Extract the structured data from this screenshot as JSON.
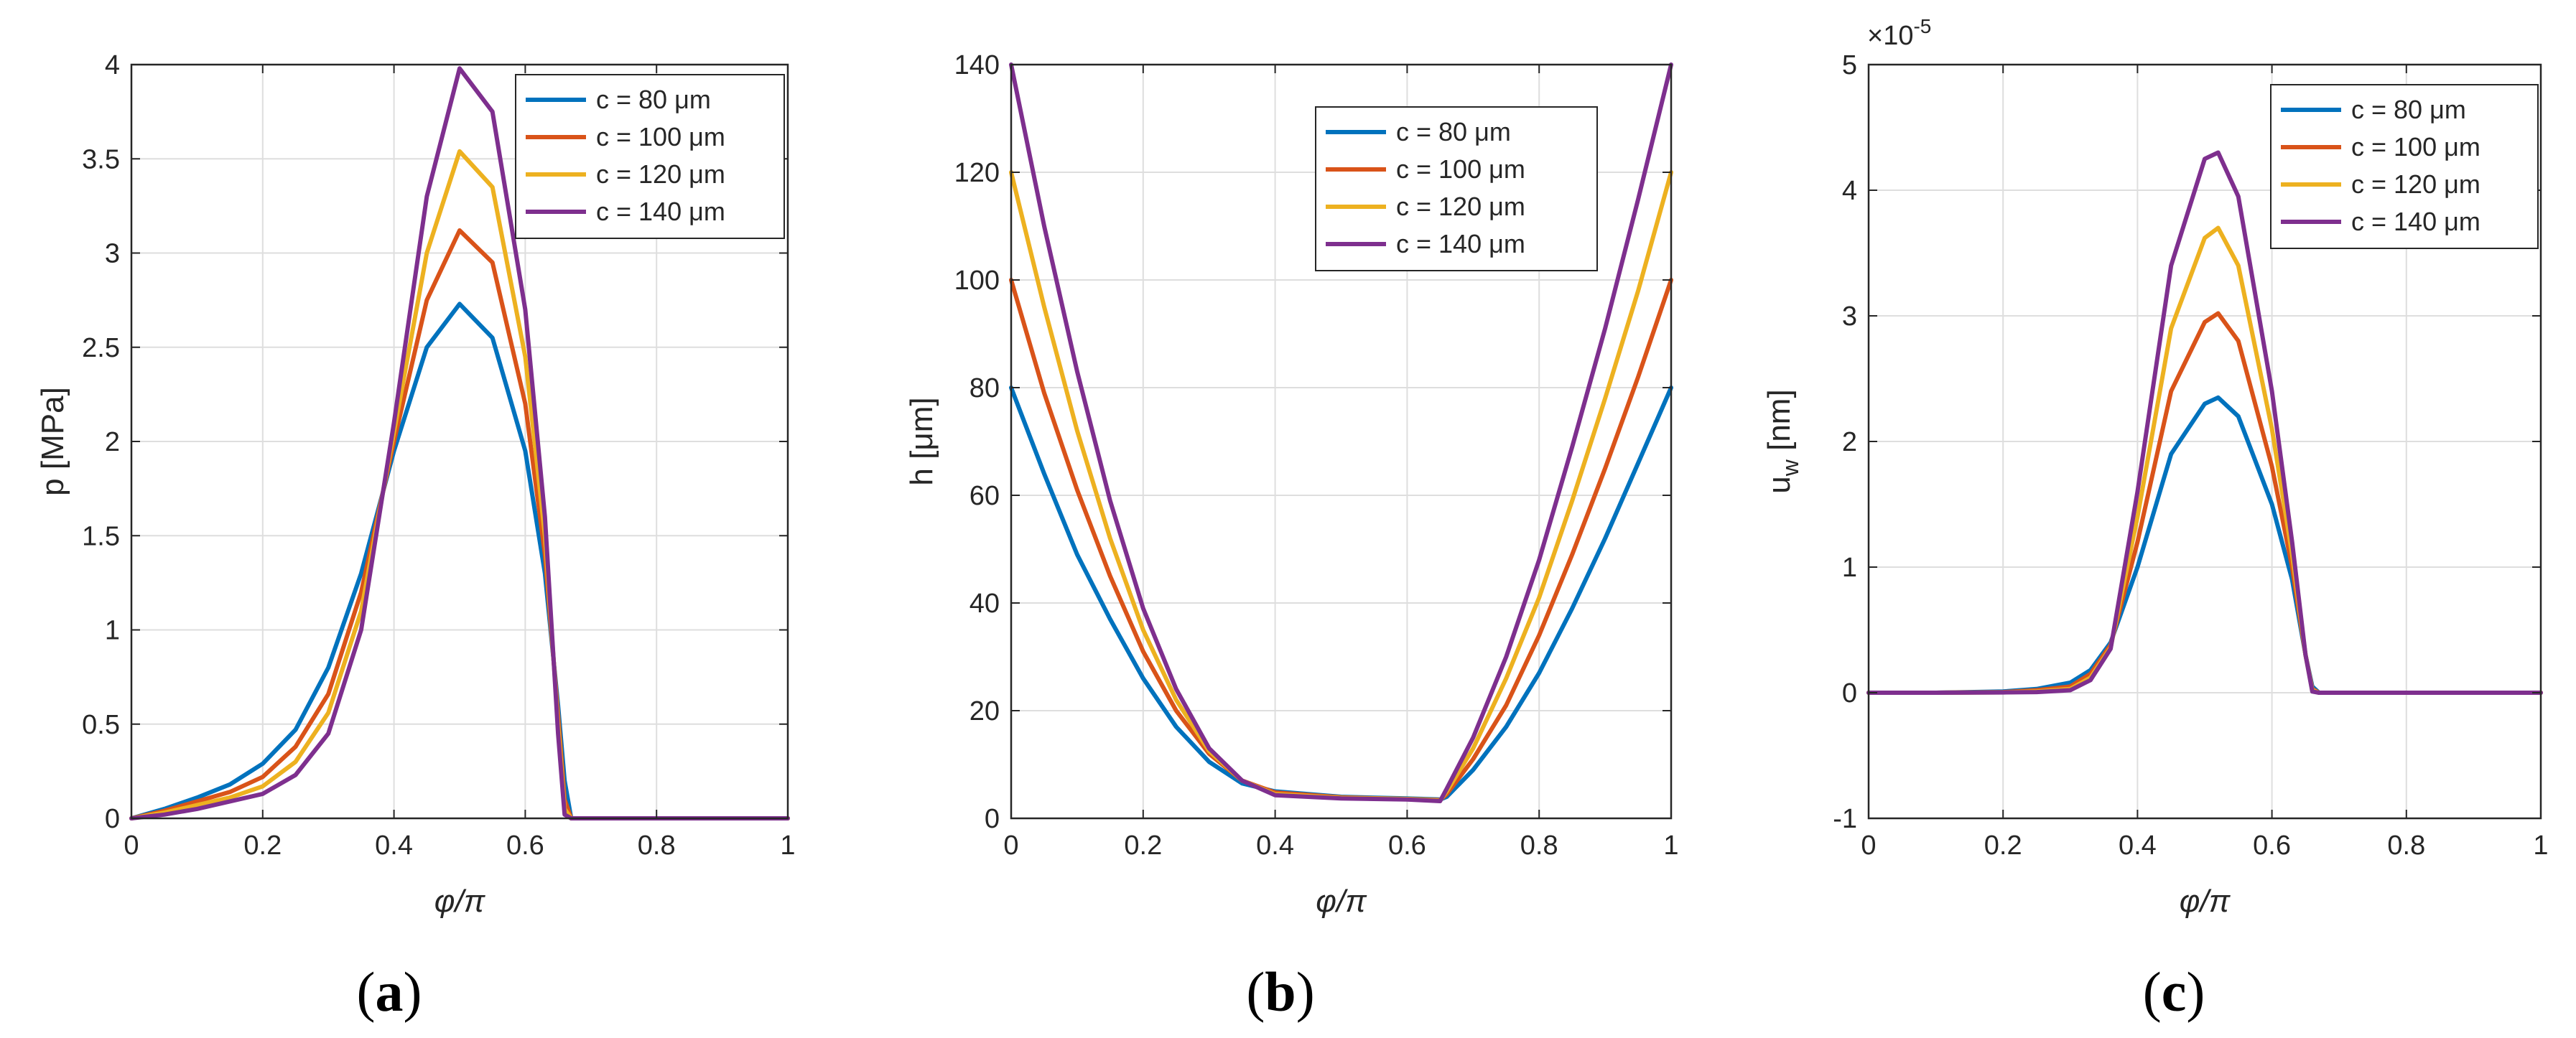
{
  "figure": {
    "panels": [
      "(a)",
      "(b)",
      "(c)"
    ],
    "panel_letters": [
      "a",
      "b",
      "c"
    ],
    "colors": [
      "#0072BD",
      "#D95319",
      "#EDB120",
      "#7E2F8E"
    ]
  },
  "chart_data": [
    {
      "id": "a",
      "type": "line",
      "title": "",
      "xlabel": "φ/π",
      "ylabel": "p [MPa]",
      "xlim": [
        0,
        1
      ],
      "ylim": [
        0,
        4
      ],
      "xticks": [
        0,
        0.2,
        0.4,
        0.6,
        0.8,
        1
      ],
      "xtick_labels": [
        "0",
        "0.2",
        "0.4",
        "0.6",
        "0.8",
        "1"
      ],
      "yticks": [
        0,
        0.5,
        1,
        1.5,
        2,
        2.5,
        3,
        3.5,
        4
      ],
      "ytick_labels": [
        "0",
        "0.5",
        "1",
        "1.5",
        "2",
        "2.5",
        "3",
        "3.5",
        "4"
      ],
      "grid": true,
      "legend_position": "top-right",
      "x": [
        0,
        0.05,
        0.1,
        0.15,
        0.2,
        0.25,
        0.3,
        0.35,
        0.4,
        0.45,
        0.5,
        0.55,
        0.6,
        0.63,
        0.65,
        0.66,
        0.67,
        0.7,
        0.8,
        0.9,
        1.0
      ],
      "series": [
        {
          "name": "c = 80 μm",
          "values": [
            0,
            0.05,
            0.11,
            0.18,
            0.29,
            0.47,
            0.8,
            1.3,
            1.95,
            2.5,
            2.73,
            2.55,
            1.95,
            1.3,
            0.6,
            0.2,
            0,
            0,
            0,
            0,
            0
          ]
        },
        {
          "name": "c = 100 μm",
          "values": [
            0,
            0.04,
            0.09,
            0.14,
            0.22,
            0.38,
            0.66,
            1.2,
            2.0,
            2.75,
            3.12,
            2.95,
            2.2,
            1.4,
            0.55,
            0.1,
            0,
            0,
            0,
            0,
            0
          ]
        },
        {
          "name": "c = 120 μm",
          "values": [
            0,
            0.03,
            0.07,
            0.11,
            0.17,
            0.3,
            0.56,
            1.1,
            2.05,
            3.0,
            3.54,
            3.35,
            2.45,
            1.5,
            0.5,
            0.05,
            0,
            0,
            0,
            0,
            0
          ]
        },
        {
          "name": "c = 140 μm",
          "values": [
            0,
            0.02,
            0.05,
            0.09,
            0.13,
            0.23,
            0.45,
            1.0,
            2.1,
            3.3,
            3.98,
            3.75,
            2.7,
            1.6,
            0.45,
            0.02,
            0,
            0,
            0,
            0,
            0
          ]
        }
      ]
    },
    {
      "id": "b",
      "type": "line",
      "title": "",
      "xlabel": "φ/π",
      "ylabel": "h [μm]",
      "xlim": [
        0,
        1
      ],
      "ylim": [
        0,
        140
      ],
      "xticks": [
        0,
        0.2,
        0.4,
        0.6,
        0.8,
        1
      ],
      "xtick_labels": [
        "0",
        "0.2",
        "0.4",
        "0.6",
        "0.8",
        "1"
      ],
      "yticks": [
        0,
        20,
        40,
        60,
        80,
        100,
        120,
        140
      ],
      "ytick_labels": [
        "0",
        "20",
        "40",
        "60",
        "80",
        "100",
        "120",
        "140"
      ],
      "grid": true,
      "legend_position": "top-right",
      "x": [
        0,
        0.05,
        0.1,
        0.15,
        0.2,
        0.25,
        0.3,
        0.35,
        0.4,
        0.5,
        0.6,
        0.65,
        0.66,
        0.7,
        0.75,
        0.8,
        0.85,
        0.9,
        0.95,
        1.0
      ],
      "series": [
        {
          "name": "c = 80 μm",
          "values": [
            80,
            64,
            49,
            37,
            26,
            17,
            10.5,
            6.5,
            5,
            4,
            3.7,
            3.5,
            4,
            9,
            17,
            27,
            39,
            52,
            66,
            80
          ]
        },
        {
          "name": "c = 100 μm",
          "values": [
            100,
            79,
            61,
            45,
            31,
            20,
            12,
            7,
            4.8,
            3.9,
            3.6,
            3.4,
            4.5,
            11,
            21,
            34,
            49,
            65,
            82,
            100
          ]
        },
        {
          "name": "c = 120 μm",
          "values": [
            120,
            95,
            72,
            52,
            35,
            22,
            12.5,
            7,
            4.5,
            3.8,
            3.6,
            3.3,
            5,
            13,
            26,
            41,
            59,
            78,
            98,
            120
          ]
        },
        {
          "name": "c = 140 μm",
          "values": [
            140,
            110,
            83,
            59,
            39,
            24,
            13,
            7,
            4.3,
            3.7,
            3.5,
            3.2,
            5.5,
            15,
            30,
            48,
            69,
            91,
            115,
            140
          ]
        }
      ]
    },
    {
      "id": "c",
      "type": "line",
      "title": "",
      "xlabel": "φ/π",
      "ylabel": "u_w [nm]",
      "ylabel_main": "u",
      "ylabel_sub": "w",
      "ylabel_unit": " [nm]",
      "exponent_label_base": "×10",
      "exponent_label_power": "-5",
      "xlim": [
        0,
        1
      ],
      "ylim": [
        -1,
        5
      ],
      "xticks": [
        0,
        0.2,
        0.4,
        0.6,
        0.8,
        1
      ],
      "xtick_labels": [
        "0",
        "0.2",
        "0.4",
        "0.6",
        "0.8",
        "1"
      ],
      "yticks": [
        -1,
        0,
        1,
        2,
        3,
        4,
        5
      ],
      "ytick_labels": [
        "-1",
        "0",
        "1",
        "2",
        "3",
        "4",
        "5"
      ],
      "grid": true,
      "legend_position": "top-right",
      "x": [
        0,
        0.1,
        0.2,
        0.25,
        0.3,
        0.33,
        0.36,
        0.4,
        0.45,
        0.5,
        0.52,
        0.55,
        0.6,
        0.63,
        0.65,
        0.66,
        0.67,
        0.7,
        0.8,
        0.9,
        1.0
      ],
      "series": [
        {
          "name": "c = 80 μm",
          "values": [
            0,
            0,
            0.01,
            0.03,
            0.08,
            0.18,
            0.4,
            1.0,
            1.9,
            2.3,
            2.35,
            2.2,
            1.5,
            0.9,
            0.3,
            0.05,
            0,
            0,
            0,
            0,
            0
          ]
        },
        {
          "name": "c = 100 μm",
          "values": [
            0,
            0,
            0.005,
            0.02,
            0.05,
            0.15,
            0.38,
            1.2,
            2.4,
            2.95,
            3.02,
            2.8,
            1.8,
            1.0,
            0.3,
            0.03,
            0,
            0,
            0,
            0,
            0
          ]
        },
        {
          "name": "c = 120 μm",
          "values": [
            0,
            0,
            0.003,
            0.01,
            0.03,
            0.12,
            0.36,
            1.4,
            2.9,
            3.62,
            3.7,
            3.4,
            2.1,
            1.1,
            0.3,
            0.02,
            0,
            0,
            0,
            0,
            0
          ]
        },
        {
          "name": "c = 140 μm",
          "values": [
            0,
            0,
            0.002,
            0.005,
            0.02,
            0.1,
            0.35,
            1.6,
            3.4,
            4.25,
            4.3,
            3.95,
            2.4,
            1.2,
            0.3,
            0.01,
            0,
            0,
            0,
            0,
            0
          ]
        }
      ]
    }
  ]
}
